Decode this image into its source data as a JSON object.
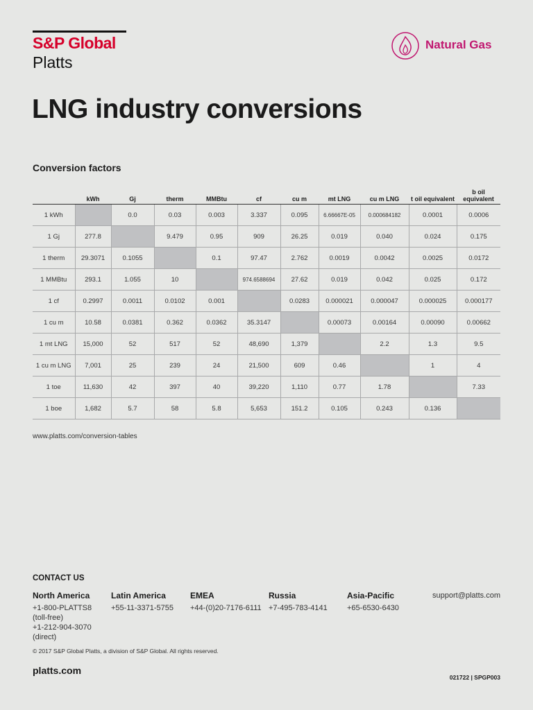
{
  "header": {
    "brand": "S&P Global",
    "sub_brand": "Platts",
    "category": "Natural Gas"
  },
  "title": "LNG industry conversions",
  "section_title": "Conversion factors",
  "table": {
    "columns": [
      "kWh",
      "Gj",
      "therm",
      "MMBtu",
      "cf",
      "cu m",
      "mt LNG",
      "cu m LNG",
      "t oil equivalent",
      "b oil equivalent"
    ],
    "rows": [
      {
        "label": "1 kWh",
        "cells": [
          null,
          "0.0",
          "0.03",
          "0.003",
          "3.337",
          "0.095",
          "6.66667E-05",
          "0.000684182",
          "0.0001",
          "0.0006"
        ]
      },
      {
        "label": "1 Gj",
        "cells": [
          "277.8",
          null,
          "9.479",
          "0.95",
          "909",
          "26.25",
          "0.019",
          "0.040",
          "0.024",
          "0.175"
        ]
      },
      {
        "label": "1 therm",
        "cells": [
          "29.3071",
          "0.1055",
          null,
          "0.1",
          "97.47",
          "2.762",
          "0.0019",
          "0.0042",
          "0.0025",
          "0.0172"
        ]
      },
      {
        "label": "1 MMBtu",
        "cells": [
          "293.1",
          "1.055",
          "10",
          null,
          "974.6588694",
          "27.62",
          "0.019",
          "0.042",
          "0.025",
          "0.172"
        ]
      },
      {
        "label": "1 cf",
        "cells": [
          "0.2997",
          "0.0011",
          "0.0102",
          "0.001",
          null,
          "0.0283",
          "0.000021",
          "0.000047",
          "0.000025",
          "0.000177"
        ]
      },
      {
        "label": "1 cu m",
        "cells": [
          "10.58",
          "0.0381",
          "0.362",
          "0.0362",
          "35.3147",
          null,
          "0.00073",
          "0.00164",
          "0.00090",
          "0.00662"
        ]
      },
      {
        "label": "1 mt LNG",
        "cells": [
          "15,000",
          "52",
          "517",
          "52",
          "48,690",
          "1,379",
          null,
          "2.2",
          "1.3",
          "9.5"
        ]
      },
      {
        "label": "1 cu m LNG",
        "cells": [
          "7,001",
          "25",
          "239",
          "24",
          "21,500",
          "609",
          "0.46",
          null,
          "1",
          "4"
        ]
      },
      {
        "label": "1 toe",
        "cells": [
          "11,630",
          "42",
          "397",
          "40",
          "39,220",
          "1,110",
          "0.77",
          "1.78",
          null,
          "7.33"
        ]
      },
      {
        "label": "1 boe",
        "cells": [
          "1,682",
          "5.7",
          "58",
          "5.8",
          "5,653",
          "151.2",
          "0.105",
          "0.243",
          "0.136",
          null
        ]
      }
    ]
  },
  "source_url": "www.platts.com/conversion-tables",
  "contact": {
    "title": "CONTACT US",
    "regions": [
      {
        "name": "North America",
        "lines": [
          "+1-800-PLATTS8",
          "(toll-free)",
          "+1-212-904-3070",
          "(direct)"
        ]
      },
      {
        "name": "Latin America",
        "lines": [
          "+55-11-3371-5755"
        ]
      },
      {
        "name": "EMEA",
        "lines": [
          "+44-(0)20-7176-6111"
        ]
      },
      {
        "name": "Russia",
        "lines": [
          "+7-495-783-4141"
        ]
      },
      {
        "name": "Asia-Pacific",
        "lines": [
          "+65-6530-6430"
        ]
      }
    ],
    "email": "support@platts.com"
  },
  "footer": {
    "copyright": "© 2017 S&P Global Platts, a division of S&P Global. All rights reserved.",
    "website": "platts.com",
    "code": "021722 | SPGP003"
  }
}
